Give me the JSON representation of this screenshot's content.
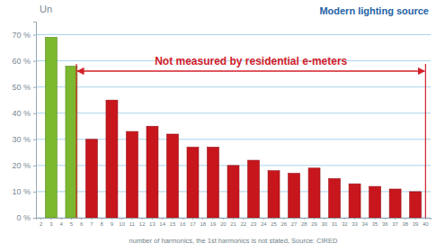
{
  "chart_data": {
    "type": "bar",
    "title": "Modern lighting source",
    "y_label": "Un",
    "x_label": "number of harmonics, the 1st harmonics is not stated, Source: CIRED",
    "categories": [
      "2",
      "3",
      "4",
      "5",
      "6",
      "7",
      "8",
      "9",
      "10",
      "11",
      "12",
      "13",
      "14",
      "15",
      "16",
      "17",
      "18",
      "19",
      "20",
      "21",
      "22",
      "23",
      "24",
      "25",
      "26",
      "27",
      "28",
      "29",
      "30",
      "31",
      "32",
      "33",
      "34",
      "35",
      "36",
      "37",
      "38",
      "39",
      "40"
    ],
    "series": [
      {
        "color": "#7cb82f",
        "values": [
          null,
          69,
          null,
          58,
          null,
          null,
          null,
          null,
          null,
          null,
          null,
          null,
          null,
          null,
          null,
          null,
          null,
          null,
          null,
          null,
          null,
          null,
          null,
          null,
          null,
          null,
          null,
          null,
          null,
          null,
          null,
          null,
          null,
          null,
          null,
          null,
          null,
          null,
          null
        ]
      },
      {
        "color": "#c8161d",
        "values": [
          null,
          null,
          null,
          null,
          null,
          30,
          null,
          45,
          null,
          33,
          null,
          35,
          null,
          32,
          null,
          27,
          null,
          27,
          null,
          20,
          null,
          22,
          null,
          18,
          null,
          17,
          null,
          19,
          null,
          15,
          null,
          13,
          null,
          12,
          null,
          11,
          null,
          10,
          null
        ]
      }
    ],
    "ylim": [
      0,
      75
    ],
    "yticks": [
      {
        "value": 0,
        "label": "0 %"
      },
      {
        "value": 10,
        "label": "10 %"
      },
      {
        "value": 20,
        "label": "20 %"
      },
      {
        "value": 30,
        "label": "30 %"
      },
      {
        "value": 40,
        "label": "40 %"
      },
      {
        "value": 50,
        "label": "50 %"
      },
      {
        "value": 60,
        "label": "60 %"
      },
      {
        "value": 70,
        "label": "70 %"
      }
    ],
    "grid": true,
    "annotations": [
      {
        "text": "Not measured by residential e-meters",
        "x_start": "6",
        "x_end": "40"
      }
    ]
  }
}
